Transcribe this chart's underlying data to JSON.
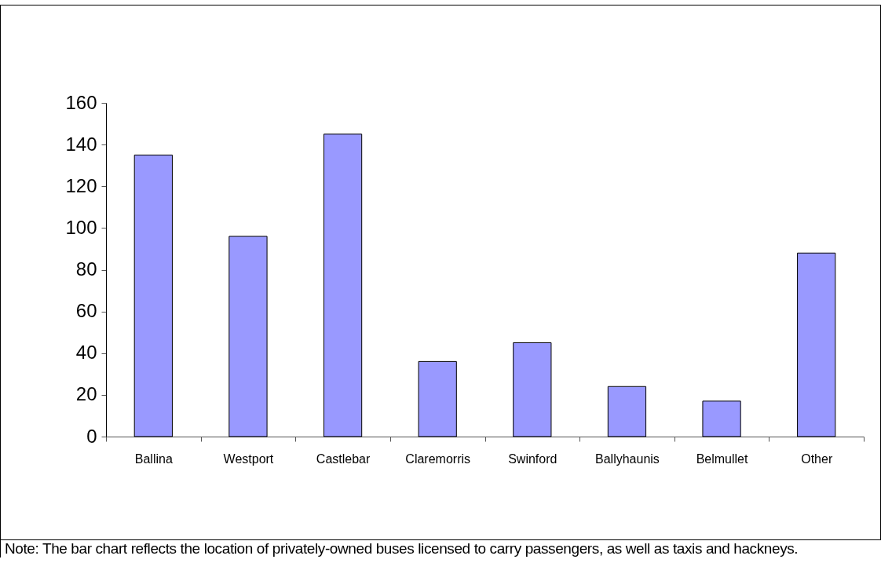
{
  "chart_data": {
    "type": "bar",
    "categories": [
      "Ballina",
      "Westport",
      "Castlebar",
      "Claremorris",
      "Swinford",
      "Ballyhaunis",
      "Belmullet",
      "Other"
    ],
    "values": [
      135,
      96,
      145,
      36,
      45,
      24,
      17,
      88
    ],
    "color": "#9999ff",
    "ylim": [
      0,
      160
    ],
    "yticks": [
      0,
      20,
      40,
      60,
      80,
      100,
      120,
      140,
      160
    ],
    "grid": false,
    "annotations": [
      "Note: The bar chart reflects the location of privately-owned buses licensed to carry passengers, as well as taxis and hackneys."
    ]
  }
}
